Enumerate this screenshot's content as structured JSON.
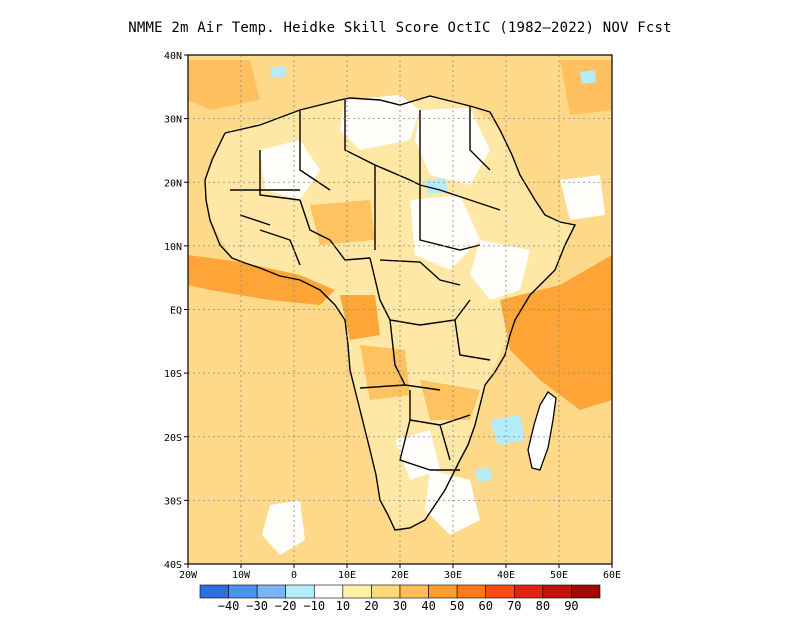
{
  "title": "NMME  2m Air Temp. Heidke Skill Score OctIC (1982–2022) NOV Fcst",
  "map": {
    "lat_labels": [
      "40N",
      "30N",
      "20N",
      "10N",
      "EQ",
      "10S",
      "20S",
      "30S",
      "40S"
    ],
    "lon_labels": [
      "20W",
      "10W",
      "0",
      "10E",
      "20E",
      "30E",
      "40E",
      "50E",
      "60E"
    ],
    "extent": {
      "lon_min": -20,
      "lon_max": 60,
      "lat_min": -40,
      "lat_max": 40
    }
  },
  "colorbar": {
    "labels": [
      "−40",
      "−30",
      "−20",
      "−10",
      "10",
      "20",
      "30",
      "40",
      "50",
      "60",
      "70",
      "80",
      "90"
    ],
    "colors": [
      "#2b6fe0",
      "#4a94f0",
      "#7ab6f6",
      "#b4ecfa",
      "#ffffff",
      "#fff2a6",
      "#ffd97a",
      "#ffbe5a",
      "#ff9e2e",
      "#ff7a1a",
      "#ff4b12",
      "#e02410",
      "#c01408",
      "#a00a04"
    ]
  },
  "colors": {
    "ocean_base": "#ffd98a",
    "land_base": "#ffe7a6",
    "white_area": "#ffffff",
    "light_blue": "#b4ecfa",
    "warm": "#ffbe5a",
    "hot": "#ff9e2e",
    "border": "#000000"
  }
}
